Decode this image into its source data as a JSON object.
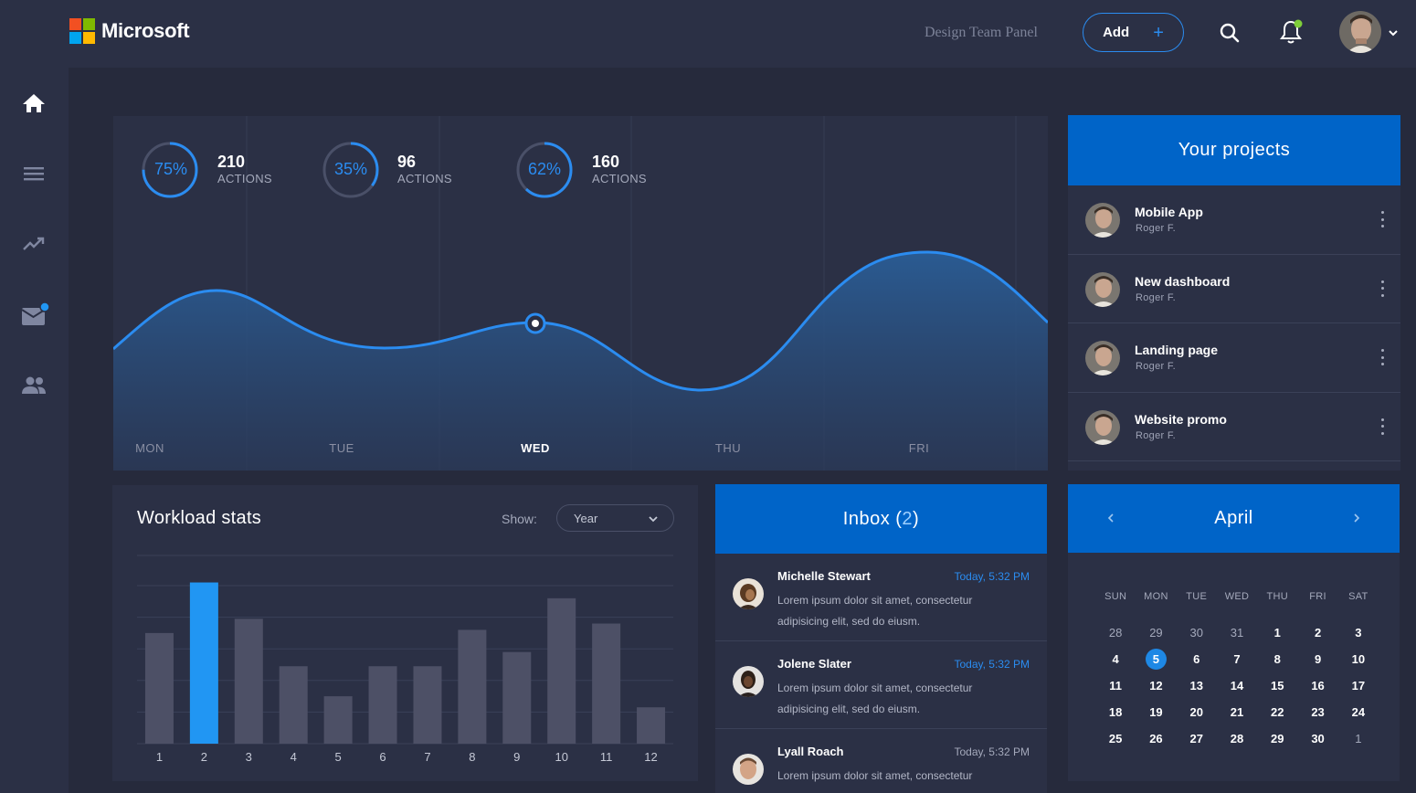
{
  "header": {
    "brand": "Microsoft",
    "panel_title": "Design Team Panel",
    "add_label": "Add",
    "icons": [
      "search-icon",
      "bell-icon",
      "avatar",
      "chevron-down-icon"
    ]
  },
  "sidebar": {
    "items": [
      "home-icon",
      "menu-icon",
      "trending-icon",
      "mail-icon",
      "people-icon"
    ]
  },
  "stats": [
    {
      "percent": "75%",
      "value": "210",
      "label": "ACTIONS"
    },
    {
      "percent": "35%",
      "value": "96",
      "label": "ACTIONS"
    },
    {
      "percent": "62%",
      "value": "160",
      "label": "ACTIONS"
    }
  ],
  "activity_chart": {
    "days": [
      "MON",
      "TUE",
      "WED",
      "THU",
      "FRI"
    ],
    "active_day": "WED"
  },
  "projects": {
    "title": "Your projects",
    "items": [
      {
        "name": "Mobile App",
        "owner": "Roger F."
      },
      {
        "name": "New dashboard",
        "owner": "Roger F."
      },
      {
        "name": "Landing page",
        "owner": "Roger F."
      },
      {
        "name": "Website promo",
        "owner": "Roger F."
      }
    ]
  },
  "workload": {
    "title": "Workload stats",
    "show_label": "Show:",
    "period": "Year"
  },
  "chart_data": {
    "type": "bar",
    "categories": [
      "1",
      "2",
      "3",
      "4",
      "5",
      "6",
      "7",
      "8",
      "9",
      "10",
      "11",
      "12"
    ],
    "values": [
      70,
      102,
      79,
      49,
      30,
      49,
      49,
      72,
      58,
      92,
      76,
      23
    ],
    "highlight_index": 1,
    "ylim": [
      0,
      100
    ],
    "colors": {
      "bar": "#4d5066",
      "highlight": "#2196f3"
    }
  },
  "inbox": {
    "title": "Inbox",
    "count": "2",
    "messages": [
      {
        "name": "Michelle Stewart",
        "time": "Today, 5:32 PM",
        "text": "Lorem ipsum dolor sit amet, consectetur adipisicing elit, sed do eiusm."
      },
      {
        "name": "Jolene Slater",
        "time": "Today, 5:32 PM",
        "text": "Lorem ipsum dolor sit amet, consectetur adipisicing elit, sed do eiusm."
      },
      {
        "name": "Lyall Roach",
        "time": "Today, 5:32 PM",
        "text": "Lorem ipsum dolor sit amet, consectetur"
      }
    ]
  },
  "calendar": {
    "month": "April",
    "weekdays": [
      "SUN",
      "MON",
      "TUE",
      "WED",
      "THU",
      "FRI",
      "SAT"
    ],
    "weeks": [
      [
        "28",
        "29",
        "30",
        "31",
        "1",
        "2",
        "3"
      ],
      [
        "4",
        "5",
        "6",
        "7",
        "8",
        "9",
        "10"
      ],
      [
        "11",
        "12",
        "13",
        "14",
        "15",
        "16",
        "17"
      ],
      [
        "18",
        "19",
        "20",
        "21",
        "22",
        "23",
        "24"
      ],
      [
        "25",
        "26",
        "27",
        "28",
        "29",
        "30",
        "1"
      ]
    ],
    "selected": "5"
  },
  "colors": {
    "accent": "#2b8cf0",
    "header_blue": "#0064c8",
    "panel": "#2b3045",
    "background": "#262a3c"
  }
}
